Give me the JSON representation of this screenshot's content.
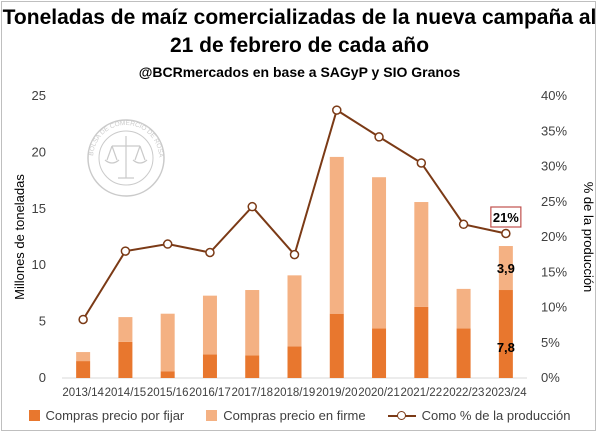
{
  "chart": {
    "title": "Toneladas de maíz comercializadas de la nueva campaña al 21 de febrero de cada año",
    "subtitle": "@BCRmercados en base a SAGyP y SIO Granos",
    "watermark_text": "BOLSA DE COMERCIO DE ROSARIO"
  },
  "colors": {
    "por_fijar": "#e8772e",
    "en_firme": "#f4b183",
    "line": "#7b3a16",
    "callout_border": "#c0504d"
  },
  "chart_data": {
    "type": "bar",
    "categories": [
      "2013/14",
      "2014/15",
      "2015/16",
      "2016/17",
      "2017/18",
      "2018/19",
      "2019/20",
      "2020/21",
      "2021/22",
      "2022/23",
      "2023/24"
    ],
    "series": [
      {
        "name": "Compras precio por fijar",
        "kind": "bar",
        "stack": "total",
        "values": [
          1.5,
          3.2,
          0.6,
          2.1,
          2.0,
          2.8,
          5.7,
          4.4,
          6.3,
          4.4,
          7.8
        ]
      },
      {
        "name": "Compras precio en firme",
        "kind": "bar",
        "stack": "total",
        "values": [
          0.8,
          2.2,
          5.1,
          5.2,
          5.8,
          6.3,
          13.9,
          13.4,
          9.3,
          3.5,
          3.9
        ]
      },
      {
        "name": "Como % de la producción",
        "kind": "line",
        "axis": "right",
        "values": [
          8.3,
          18.0,
          19.0,
          17.8,
          24.3,
          17.5,
          38.0,
          34.2,
          30.5,
          21.8,
          20.5
        ]
      }
    ],
    "ylabel": "Millones de toneladas",
    "y2label": "% de la producción",
    "ylim": [
      0,
      25
    ],
    "y2lim": [
      0,
      40
    ],
    "yticks": [
      "0",
      "5",
      "10",
      "15",
      "20",
      "25"
    ],
    "y2ticks": [
      "0%",
      "5%",
      "10%",
      "15%",
      "20%",
      "25%",
      "30%",
      "35%",
      "40%"
    ],
    "data_labels": [
      {
        "series": "Compras precio en firme",
        "category": "2023/24",
        "text": "3,9"
      },
      {
        "series": "Compras precio por fijar",
        "category": "2023/24",
        "text": "7,8"
      }
    ],
    "callout": {
      "category": "2023/24",
      "text": "21%"
    },
    "grid": false,
    "legend": "bottom"
  }
}
